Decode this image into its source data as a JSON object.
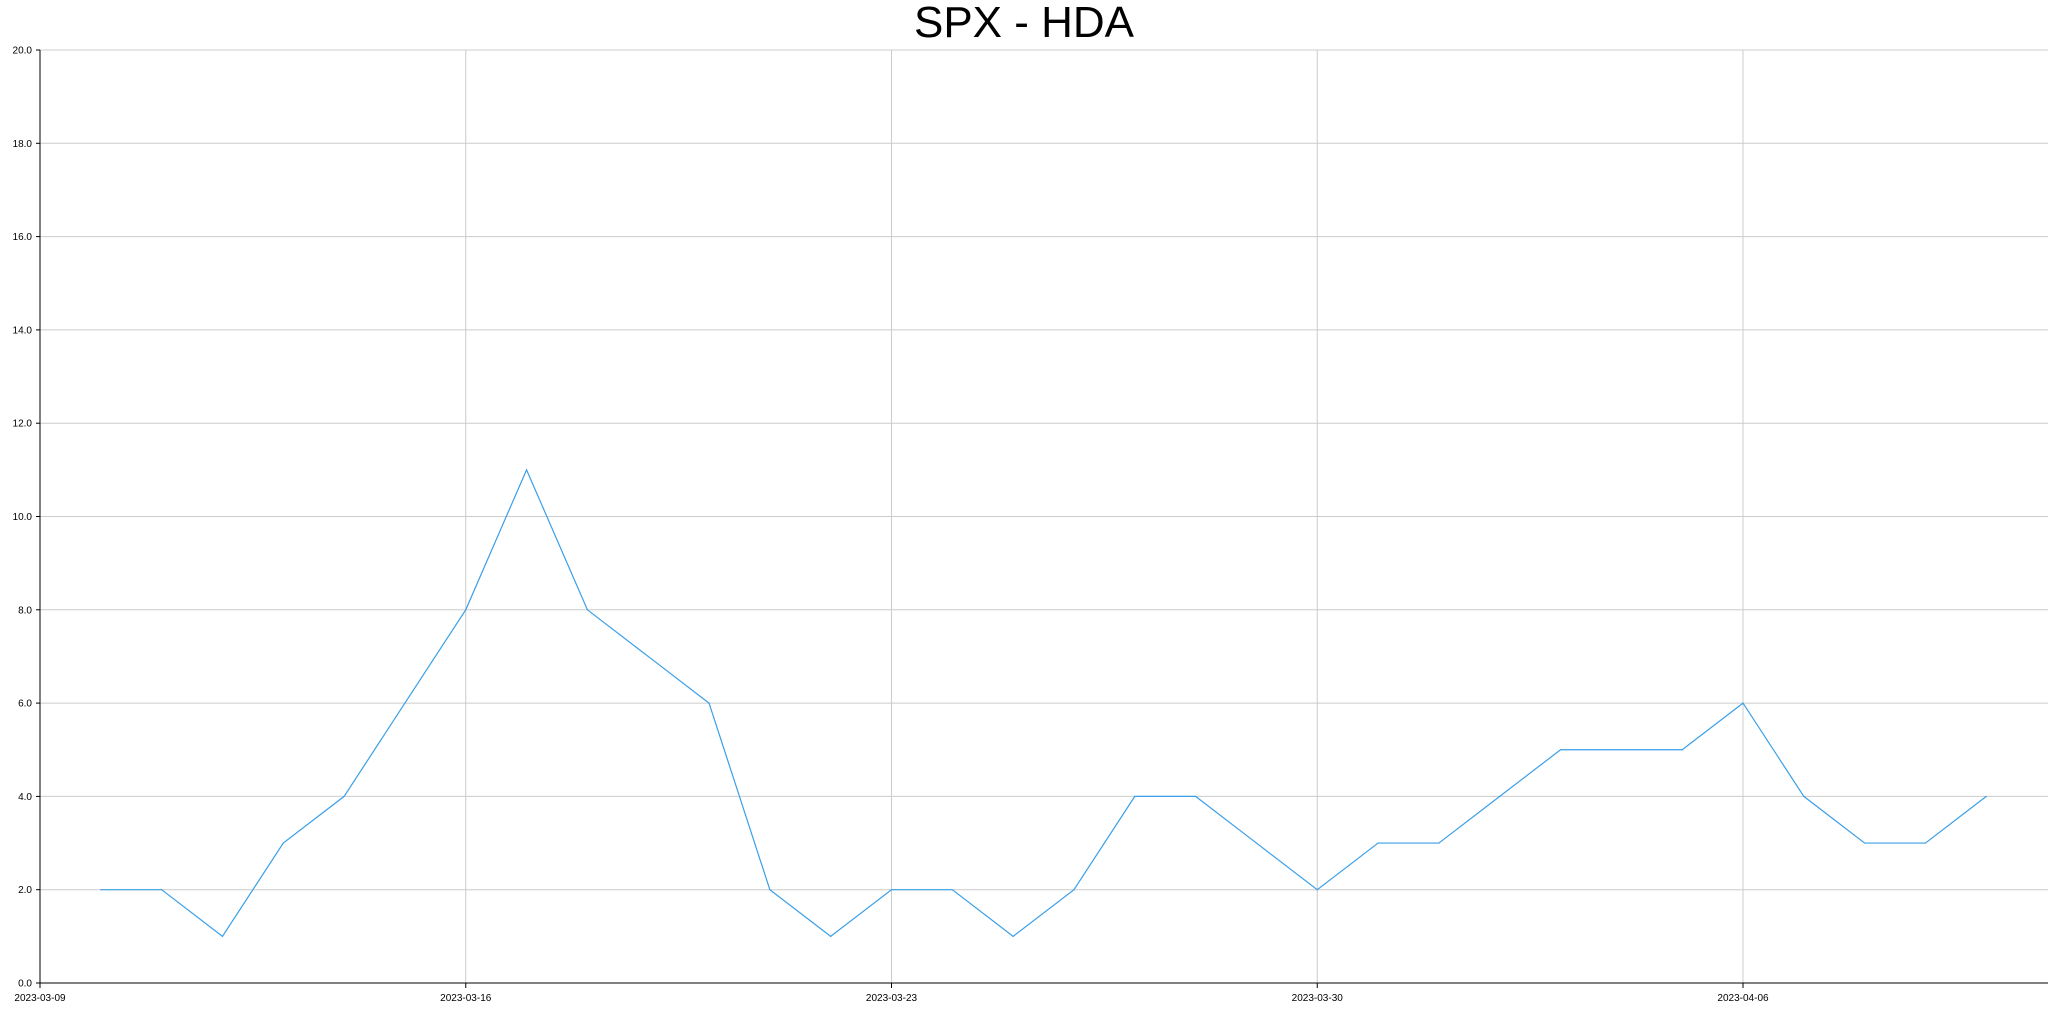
{
  "chart_data": {
    "type": "line",
    "title": "SPX - HDA",
    "xlabel": "",
    "ylabel": "",
    "x_tick_labels": [
      "2023-03-09",
      "2023-03-16",
      "2023-03-23",
      "2023-03-30",
      "2023-04-06"
    ],
    "y_tick_labels": [
      "0.0",
      "2.0",
      "4.0",
      "6.0",
      "8.0",
      "10.0",
      "12.0",
      "14.0",
      "16.0",
      "18.0",
      "20.0"
    ],
    "ylim": [
      0,
      20
    ],
    "xlim": [
      "2023-03-09",
      "2023-04-12"
    ],
    "grid": true,
    "series": [
      {
        "color": "#3a9fe8",
        "x": [
          "2023-03-10",
          "2023-03-11",
          "2023-03-12",
          "2023-03-13",
          "2023-03-14",
          "2023-03-15",
          "2023-03-16",
          "2023-03-17",
          "2023-03-18",
          "2023-03-19",
          "2023-03-20",
          "2023-03-21",
          "2023-03-22",
          "2023-03-23",
          "2023-03-24",
          "2023-03-25",
          "2023-03-26",
          "2023-03-27",
          "2023-03-28",
          "2023-03-29",
          "2023-03-30",
          "2023-03-31",
          "2023-04-01",
          "2023-04-02",
          "2023-04-03",
          "2023-04-04",
          "2023-04-05",
          "2023-04-06",
          "2023-04-07",
          "2023-04-08",
          "2023-04-09",
          "2023-04-10"
        ],
        "values": [
          2,
          2,
          1,
          3,
          4,
          6,
          8,
          11,
          8,
          7,
          6,
          2,
          1,
          2,
          2,
          1,
          2,
          4,
          4,
          3,
          2,
          3,
          3,
          4,
          5,
          5,
          5,
          6,
          4,
          3,
          3,
          4
        ]
      }
    ]
  }
}
